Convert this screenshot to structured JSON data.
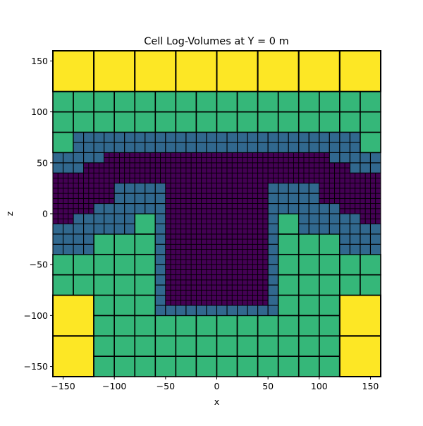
{
  "chart_data": {
    "type": "heatmap",
    "title": "Cell Log-Volumes at Y = 0 m",
    "xlabel": "x",
    "ylabel": "z",
    "xlim": [
      -160,
      160
    ],
    "ylim": [
      -160,
      160
    ],
    "xticks": [
      -150,
      -100,
      -50,
      0,
      50,
      100,
      150
    ],
    "yticks": [
      -150,
      -100,
      -50,
      0,
      50,
      100,
      150
    ],
    "xtick_labels": [
      "−150",
      "−100",
      "−50",
      "0",
      "50",
      "100",
      "150"
    ],
    "ytick_labels": [
      "−150",
      "−100",
      "−50",
      "0",
      "50",
      "100",
      "150"
    ],
    "grid": false,
    "legend": "none",
    "colormap": {
      "level_0_cell_size_5": "#440154",
      "level_1_cell_size_10": "#31688e",
      "level_2_cell_size_20": "#35b779",
      "level_3_cell_size_40": "#fde725"
    },
    "cell_outline_color": "#000000",
    "cell_sizes_m": [
      5,
      10,
      20,
      40
    ],
    "octree_description": "Mesh cells colored by log of cell volume; finest cells along T-shaped body, coarsening outward"
  }
}
